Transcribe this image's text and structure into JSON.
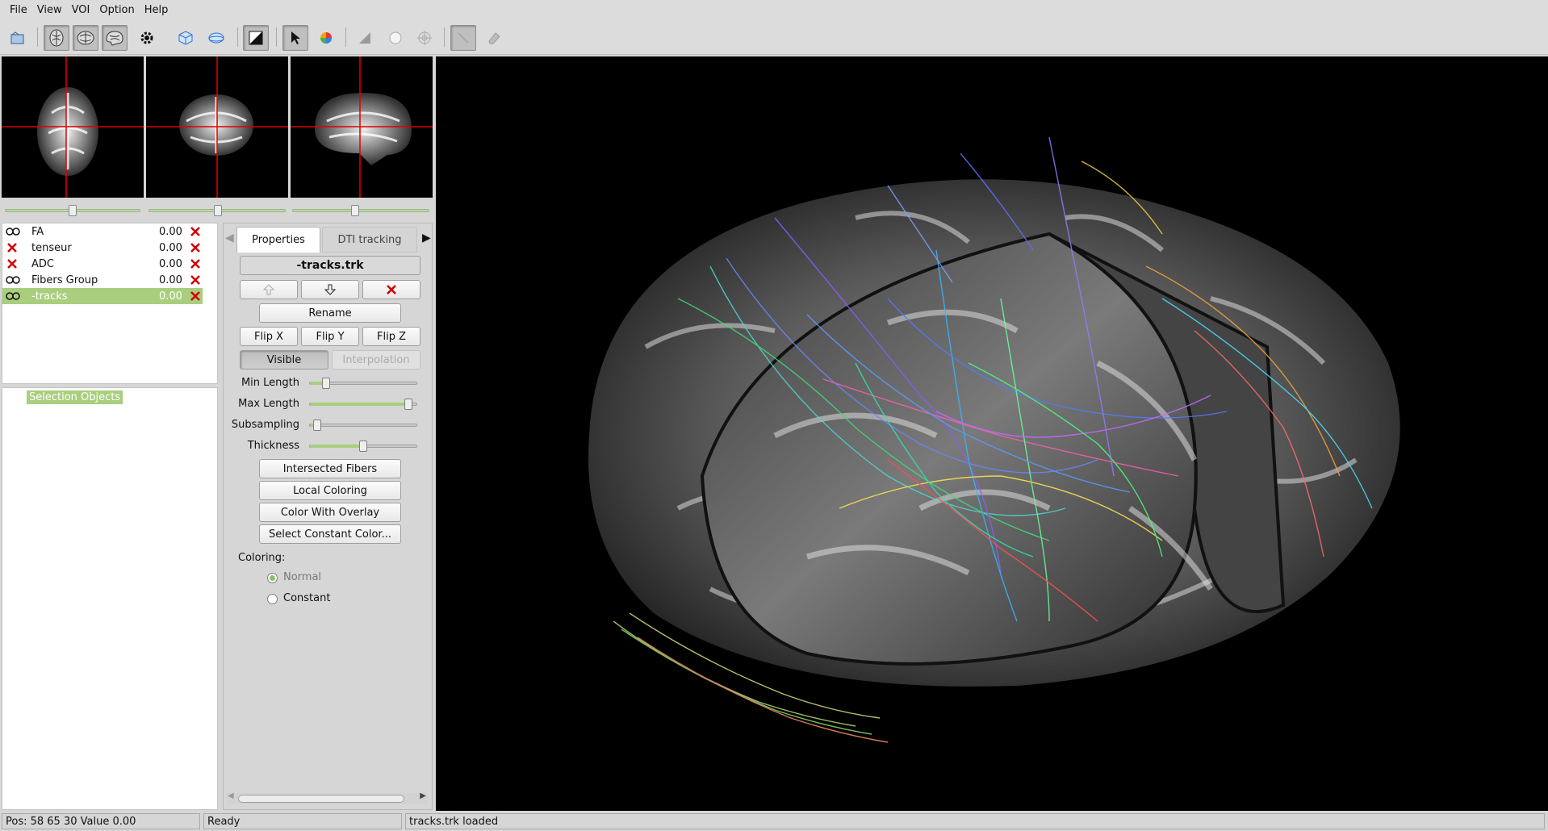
{
  "menu": [
    "File",
    "View",
    "VOI",
    "Option",
    "Help"
  ],
  "toolbar": {
    "buttons": [
      {
        "icon": "open-file-icon"
      },
      {
        "icon": "axial-brain-icon",
        "pressed": true
      },
      {
        "icon": "coronal-brain-icon",
        "pressed": true
      },
      {
        "icon": "sagittal-brain-icon",
        "pressed": true
      },
      {
        "icon": "settings-gear-icon"
      },
      {
        "icon": "3d-cube-icon"
      },
      {
        "icon": "sphere-icon"
      },
      {
        "icon": "contrast-icon",
        "pressed": true
      },
      {
        "icon": "pointer-cursor-icon",
        "pressed": true
      },
      {
        "icon": "color-palette-icon"
      },
      {
        "icon": "triangle-tool-icon"
      },
      {
        "icon": "circle-tool-icon"
      },
      {
        "icon": "target-tool-icon"
      },
      {
        "icon": "line-tool-icon"
      },
      {
        "icon": "eraser-icon"
      }
    ]
  },
  "slice_sliders": [
    0.5,
    0.5,
    0.45
  ],
  "layers": [
    {
      "name": "FA",
      "opacity": "0.00",
      "visible": true,
      "selected": false
    },
    {
      "name": "tenseur",
      "opacity": "0.00",
      "visible": false,
      "selected": false
    },
    {
      "name": "ADC",
      "opacity": "0.00",
      "visible": false,
      "selected": false
    },
    {
      "name": "Fibers Group",
      "opacity": "0.00",
      "visible": true,
      "selected": false
    },
    {
      "name": "-tracks",
      "opacity": "0.00",
      "visible": true,
      "selected": true
    }
  ],
  "selection_objects_label": "Selection Objects",
  "tabs": {
    "properties": "Properties",
    "dti_tracking": "DTI tracking"
  },
  "properties": {
    "file_title": "-tracks.trk",
    "rename": "Rename",
    "flip_x": "Flip X",
    "flip_y": "Flip Y",
    "flip_z": "Flip Z",
    "visible": "Visible",
    "interpolation": "Interpolation",
    "min_length_label": "Min Length",
    "max_length_label": "Max Length",
    "subsampling_label": "Subsampling",
    "thickness_label": "Thickness",
    "min_length_value": 0.12,
    "max_length_value": 0.96,
    "subsampling_value": 0.03,
    "thickness_value": 0.5,
    "intersected_fibers": "Intersected Fibers",
    "local_coloring": "Local Coloring",
    "color_with_overlay": "Color With Overlay",
    "select_constant_color": "Select Constant Color...",
    "coloring_label": "Coloring:",
    "normal": "Normal",
    "constant": "Constant",
    "coloring_selected": "Normal"
  },
  "colors": {
    "accent_green": "#a9cf7e",
    "crosshair_red": "#e00000",
    "delete_red": "#d00000"
  },
  "status": {
    "position": "Pos: 58  65  30 Value 0.00",
    "state": "Ready",
    "message": "tracks.trk loaded"
  }
}
